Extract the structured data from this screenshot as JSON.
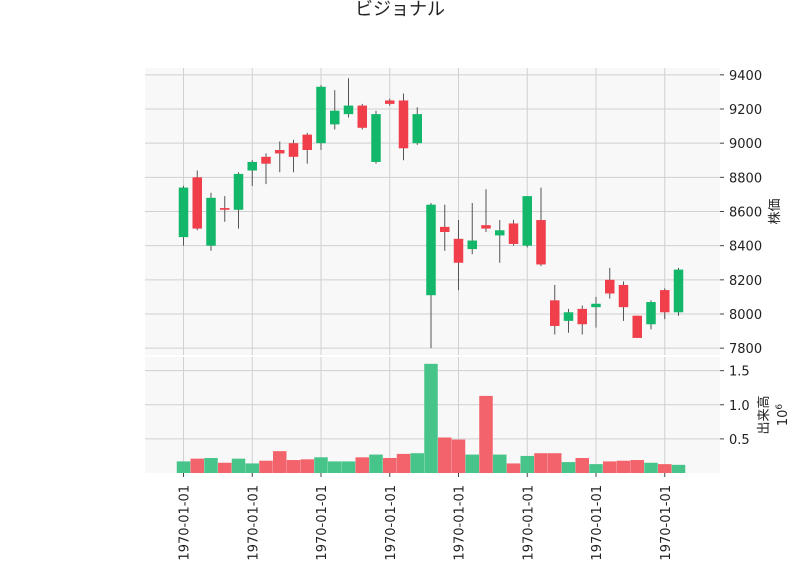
{
  "chart_data": {
    "type": "candlestick",
    "title": "ビジョナル",
    "colors": {
      "up": "#12b76a",
      "down": "#f03e4a",
      "volume_up": "#46c48a",
      "volume_down": "#f2636b",
      "grid": "#d0d0d0",
      "panel_bg": "#f8f8f8"
    },
    "grid": true,
    "price_panel": {
      "ylabel": "株価",
      "ylim": [
        7760,
        9440
      ],
      "yticks": [
        7800,
        8000,
        8200,
        8400,
        8600,
        8800,
        9000,
        9200,
        9400
      ],
      "ytick_labels": [
        "7800",
        "8000",
        "8200",
        "8400",
        "8600",
        "8800",
        "9000",
        "9200",
        "9400"
      ]
    },
    "volume_panel": {
      "ylabel": "出来高",
      "scale_label": "10",
      "scale_exponent": "6",
      "ylim": [
        0,
        1.7
      ],
      "yticks": [
        0.5,
        1.0,
        1.5
      ],
      "ytick_labels": [
        "0.5",
        "1.0",
        "1.5"
      ]
    },
    "x_tick_indices": [
      0,
      5,
      10,
      15,
      20,
      25,
      30,
      35
    ],
    "x_tick_labels": [
      "1970-01-01",
      "1970-01-01",
      "1970-01-01",
      "1970-01-01",
      "1970-01-01",
      "1970-01-01",
      "1970-01-01",
      "1970-01-01"
    ],
    "candles": [
      {
        "open": 8450,
        "high": 8750,
        "low": 8400,
        "close": 8740,
        "volume": 0.17
      },
      {
        "open": 8800,
        "high": 8840,
        "low": 8490,
        "close": 8500,
        "volume": 0.21
      },
      {
        "open": 8400,
        "high": 8710,
        "low": 8370,
        "close": 8680,
        "volume": 0.22
      },
      {
        "open": 8620,
        "high": 8690,
        "low": 8540,
        "close": 8610,
        "volume": 0.15
      },
      {
        "open": 8610,
        "high": 8830,
        "low": 8500,
        "close": 8820,
        "volume": 0.21
      },
      {
        "open": 8840,
        "high": 8900,
        "low": 8750,
        "close": 8890,
        "volume": 0.14
      },
      {
        "open": 8920,
        "high": 8940,
        "low": 8760,
        "close": 8880,
        "volume": 0.18
      },
      {
        "open": 8960,
        "high": 9010,
        "low": 8830,
        "close": 8940,
        "volume": 0.32
      },
      {
        "open": 9000,
        "high": 9020,
        "low": 8830,
        "close": 8920,
        "volume": 0.19
      },
      {
        "open": 9050,
        "high": 9060,
        "low": 8880,
        "close": 8960,
        "volume": 0.2
      },
      {
        "open": 9000,
        "high": 9340,
        "low": 8960,
        "close": 9330,
        "volume": 0.23
      },
      {
        "open": 9110,
        "high": 9310,
        "low": 9080,
        "close": 9190,
        "volume": 0.17
      },
      {
        "open": 9170,
        "high": 9380,
        "low": 9150,
        "close": 9220,
        "volume": 0.17
      },
      {
        "open": 9220,
        "high": 9230,
        "low": 9080,
        "close": 9090,
        "volume": 0.23
      },
      {
        "open": 8890,
        "high": 9190,
        "low": 8880,
        "close": 9170,
        "volume": 0.27
      },
      {
        "open": 9250,
        "high": 9260,
        "low": 9220,
        "close": 9230,
        "volume": 0.22
      },
      {
        "open": 9250,
        "high": 9290,
        "low": 8900,
        "close": 8970,
        "volume": 0.28
      },
      {
        "open": 9000,
        "high": 9210,
        "low": 8990,
        "close": 9170,
        "volume": 0.29
      },
      {
        "open": 8110,
        "high": 8650,
        "low": 7800,
        "close": 8640,
        "volume": 1.6
      },
      {
        "open": 8510,
        "high": 8640,
        "low": 8370,
        "close": 8480,
        "volume": 0.52
      },
      {
        "open": 8440,
        "high": 8550,
        "low": 8140,
        "close": 8300,
        "volume": 0.49
      },
      {
        "open": 8380,
        "high": 8650,
        "low": 8350,
        "close": 8430,
        "volume": 0.27
      },
      {
        "open": 8520,
        "high": 8730,
        "low": 8480,
        "close": 8500,
        "volume": 1.13
      },
      {
        "open": 8460,
        "high": 8550,
        "low": 8300,
        "close": 8490,
        "volume": 0.27
      },
      {
        "open": 8530,
        "high": 8550,
        "low": 8400,
        "close": 8410,
        "volume": 0.14
      },
      {
        "open": 8400,
        "high": 8690,
        "low": 8390,
        "close": 8690,
        "volume": 0.25
      },
      {
        "open": 8550,
        "high": 8740,
        "low": 8280,
        "close": 8290,
        "volume": 0.29
      },
      {
        "open": 8080,
        "high": 8170,
        "low": 7880,
        "close": 7930,
        "volume": 0.29
      },
      {
        "open": 7960,
        "high": 8030,
        "low": 7890,
        "close": 8010,
        "volume": 0.16
      },
      {
        "open": 8030,
        "high": 8050,
        "low": 7880,
        "close": 7940,
        "volume": 0.22
      },
      {
        "open": 8040,
        "high": 8100,
        "low": 7920,
        "close": 8060,
        "volume": 0.13
      },
      {
        "open": 8200,
        "high": 8270,
        "low": 8090,
        "close": 8120,
        "volume": 0.17
      },
      {
        "open": 8170,
        "high": 8190,
        "low": 7960,
        "close": 8040,
        "volume": 0.18
      },
      {
        "open": 7990,
        "high": 7990,
        "low": 7860,
        "close": 7860,
        "volume": 0.19
      },
      {
        "open": 7940,
        "high": 8080,
        "low": 7910,
        "close": 8070,
        "volume": 0.15
      },
      {
        "open": 8140,
        "high": 8150,
        "low": 7970,
        "close": 8010,
        "volume": 0.13
      },
      {
        "open": 8010,
        "high": 8270,
        "low": 7990,
        "close": 8260,
        "volume": 0.12
      }
    ]
  }
}
